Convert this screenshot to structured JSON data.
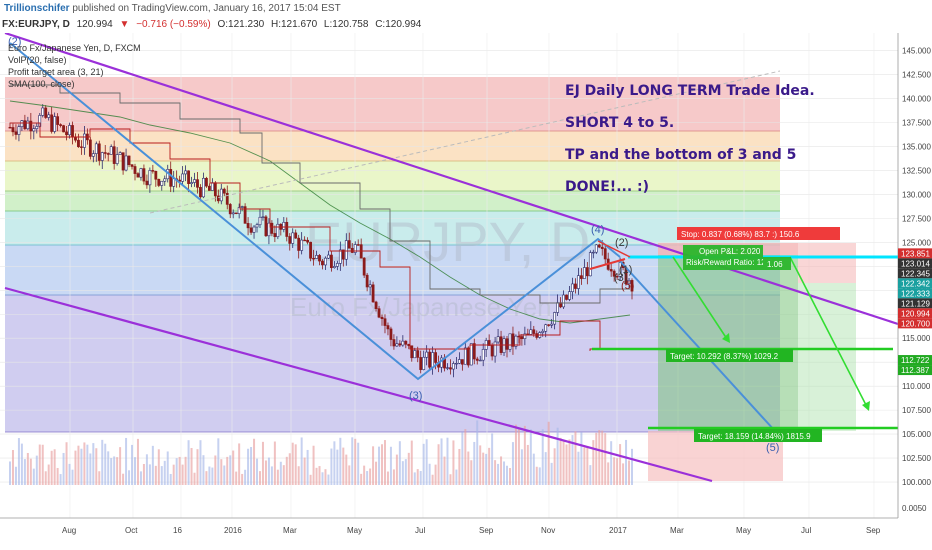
{
  "header": {
    "author": "Trillionschifer",
    "published": "published on TradingView.com, January 16, 2017 15:04 EST"
  },
  "symbol_bar": {
    "symbol": "FX:EURJPY, D",
    "last": "120.994",
    "change": "−0.716 (−0.59%)",
    "open": "O:121.230",
    "high": "H:121.670",
    "low": "L:120.758",
    "close": "C:120.994"
  },
  "legend": {
    "title": "Euro Fx/Japanese Yen, D, FXCM",
    "line1": "VolP(20, false)",
    "line2": "Profit target area (3, 21)",
    "line3": "SMA(100, close)"
  },
  "watermark": {
    "symbol": "EURJPY, D",
    "name": "Euro Fx/Japanese Yen"
  },
  "annotations": {
    "line1": "EJ Daily LONG TERM Trade Idea.",
    "line2": "SHORT 4 to 5.",
    "line3": "TP and the bottom of 3 and 5",
    "line4": "DONE!... :)"
  },
  "wave_labels": {
    "w2_top": "(2)",
    "w3": "(3)",
    "w4": "(4)",
    "w2": "(2)",
    "w1": "(1)",
    "w3b": "(3)",
    "w5": "(5)"
  },
  "trade_box": {
    "stop": "Stop: 0.837 (0.68%) 83.7 :) 150.6",
    "open_pl": "Open P&L: 2.020",
    "rr": "Risk/Reward Ratio: 12.3",
    "rr_extra": "1.06",
    "target1": "Target: 10.292 (8.37%) 1029.2",
    "target2": "Target: 18.159 (14.84%) 1815.9"
  },
  "colors": {
    "channel": "#9b30d9",
    "trend": "#4a90d9",
    "target_line": "#22cc22",
    "cyan": "#00e5ff",
    "up_candle": "#2b2b6b",
    "down_candle": "#8b1a1a"
  },
  "chart_data": {
    "type": "line",
    "title": "Euro Fx/Japanese Yen, D, FXCM",
    "xlabel": "",
    "ylabel": "",
    "ylim": [
      97.5,
      146.0
    ],
    "x_ticks": [
      "Aug",
      "Oct",
      "16",
      "2016",
      "Mar",
      "May",
      "Jul",
      "Sep",
      "Nov",
      "2017",
      "Mar",
      "May",
      "Jul",
      "Sep"
    ],
    "y_ticks": [
      145.0,
      142.5,
      140.0,
      137.5,
      135.0,
      132.5,
      130.0,
      127.5,
      125.0,
      122.5,
      120.0,
      117.5,
      115.0,
      112.5,
      110.0,
      107.5,
      105.0,
      102.5,
      100.0
    ],
    "y_ticks_text": [
      "145.000",
      "142.500",
      "140.000",
      "137.500",
      "135.000",
      "132.500",
      "130.000",
      "127.500",
      "125.000",
      "122.500",
      "120.000",
      "117.500",
      "115.000",
      "112.500",
      "110.000",
      "107.500",
      "105.000",
      "102.500",
      "100.000"
    ],
    "price_tags": [
      {
        "value": 123.851,
        "text": "123.851",
        "color": "#d32f2f"
      },
      {
        "value": 123.014,
        "text": "123.014",
        "color": "#333333"
      },
      {
        "value": 122.345,
        "text": "122.345",
        "color": "#333333"
      },
      {
        "value": 122.342,
        "text": "122.342",
        "color": "#1aa0a0"
      },
      {
        "value": 122.333,
        "text": "122.333",
        "color": "#1aa0a0"
      },
      {
        "value": 121.129,
        "text": "121.129",
        "color": "#333333"
      },
      {
        "value": 120.994,
        "text": "120.994",
        "color": "#d32f2f"
      },
      {
        "value": 120.7,
        "text": "120.700",
        "color": "#d32f2f"
      },
      {
        "value": 112.722,
        "text": "112.722",
        "color": "#22aa22"
      },
      {
        "value": 112.387,
        "text": "112.387",
        "color": "#22aa22"
      }
    ],
    "volume_axis_label": "0.0050",
    "series": [
      {
        "name": "EURJPY",
        "x": [
          "2015-07",
          "2015-08",
          "2015-09",
          "2015-10",
          "2015-11",
          "2015-12",
          "2016-01",
          "2016-02",
          "2016-03",
          "2016-04",
          "2016-05",
          "2016-06",
          "2016-07",
          "2016-08",
          "2016-09",
          "2016-10",
          "2016-11",
          "2016-12",
          "2017-01"
        ],
        "values": [
          137.0,
          138.0,
          135.5,
          134.0,
          132.0,
          131.5,
          130.0,
          127.0,
          126.0,
          123.0,
          124.5,
          115.0,
          112.5,
          113.0,
          114.0,
          115.0,
          118.5,
          124.0,
          121.0
        ]
      }
    ]
  }
}
